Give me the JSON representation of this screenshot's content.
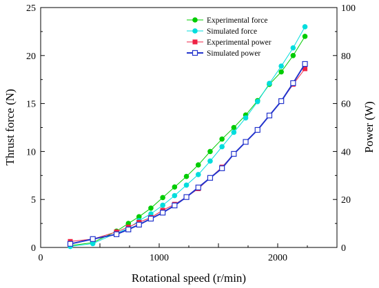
{
  "chart_data": {
    "type": "line",
    "xlabel": "Rotational speed (r/min)",
    "ylabel_left": "Thrust force (N)",
    "ylabel_right": "Power (W)",
    "xlim": [
      0,
      2500
    ],
    "ylim_left": [
      0,
      25
    ],
    "ylim_right": [
      0,
      100
    ],
    "x_ticks": [
      0,
      1000,
      2000
    ],
    "y_left_ticks": [
      0,
      5,
      10,
      15,
      20,
      25
    ],
    "y_right_ticks": [
      0,
      20,
      40,
      60,
      80,
      100
    ],
    "grid": false,
    "legend_position": "top-right",
    "series": [
      {
        "name": "Experimental force",
        "axis": "left",
        "color": "#00cc00",
        "marker": "circle-filled",
        "x": [
          250,
          440,
          640,
          740,
          830,
          930,
          1030,
          1130,
          1230,
          1330,
          1430,
          1530,
          1630,
          1730,
          1830,
          1930,
          2030,
          2130,
          2230
        ],
        "y": [
          0.2,
          0.5,
          1.7,
          2.5,
          3.2,
          4.1,
          5.2,
          6.3,
          7.4,
          8.6,
          10.0,
          11.3,
          12.5,
          13.8,
          15.3,
          17.0,
          18.3,
          20.0,
          22.0
        ]
      },
      {
        "name": "Simulated force",
        "axis": "left",
        "color": "#00dddd",
        "marker": "circle-filled",
        "x": [
          250,
          440,
          640,
          740,
          830,
          930,
          1030,
          1130,
          1230,
          1330,
          1430,
          1530,
          1630,
          1730,
          1830,
          1930,
          2030,
          2130,
          2230
        ],
        "y": [
          0.1,
          0.4,
          1.5,
          2.0,
          2.8,
          3.5,
          4.4,
          5.4,
          6.5,
          7.6,
          9.0,
          10.5,
          12.0,
          13.5,
          15.2,
          17.1,
          18.9,
          20.8,
          23.0
        ]
      },
      {
        "name": "Experimental power",
        "axis": "right",
        "color": "#ee2244",
        "marker": "square-filled",
        "x": [
          250,
          440,
          640,
          740,
          830,
          930,
          1030,
          1130,
          1230,
          1330,
          1430,
          1530,
          1630,
          1730,
          1830,
          1930,
          2030,
          2130,
          2230
        ],
        "y": [
          2.5,
          3.5,
          6.5,
          8.5,
          10.5,
          12.5,
          15.5,
          18.0,
          21.0,
          24.5,
          29.0,
          33.5,
          39.0,
          44.0,
          49.0,
          55.0,
          61.0,
          68.0,
          74.5
        ]
      },
      {
        "name": "Simulated power",
        "axis": "right",
        "color": "#2233cc",
        "marker": "square-open",
        "x": [
          250,
          440,
          640,
          740,
          830,
          930,
          1030,
          1130,
          1230,
          1330,
          1430,
          1530,
          1630,
          1730,
          1830,
          1930,
          2030,
          2130,
          2230
        ],
        "y": [
          1.5,
          3.5,
          5.5,
          7.5,
          9.5,
          12.0,
          14.5,
          17.5,
          21.0,
          25.0,
          29.0,
          33.0,
          39.0,
          44.0,
          49.0,
          55.0,
          61.0,
          68.5,
          76.5
        ]
      }
    ]
  }
}
